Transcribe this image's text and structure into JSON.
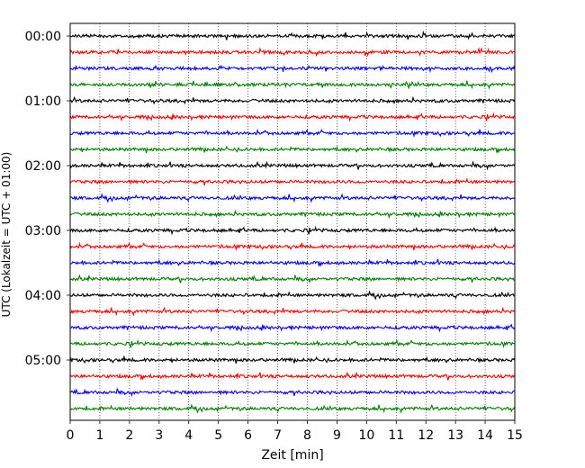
{
  "chart_data": {
    "type": "line",
    "title": "",
    "xlabel": "Zeit  [min]",
    "ylabel": "UTC (Lokalzeit = UTC + 01:00)",
    "xlim": [
      0,
      15
    ],
    "x_ticks": [
      "0",
      "1",
      "2",
      "3",
      "4",
      "5",
      "6",
      "7",
      "8",
      "9",
      "10",
      "11",
      "12",
      "13",
      "14",
      "15"
    ],
    "y_ticks": [
      "00:00",
      "01:00",
      "02:00",
      "03:00",
      "04:00",
      "05:00"
    ],
    "rows_per_hour": 4,
    "row_count": 24,
    "row_interval_min": 15,
    "grid_x": true,
    "series_colors": [
      "#000000",
      "#ff0000",
      "#0000ff",
      "#008000"
    ]
  }
}
